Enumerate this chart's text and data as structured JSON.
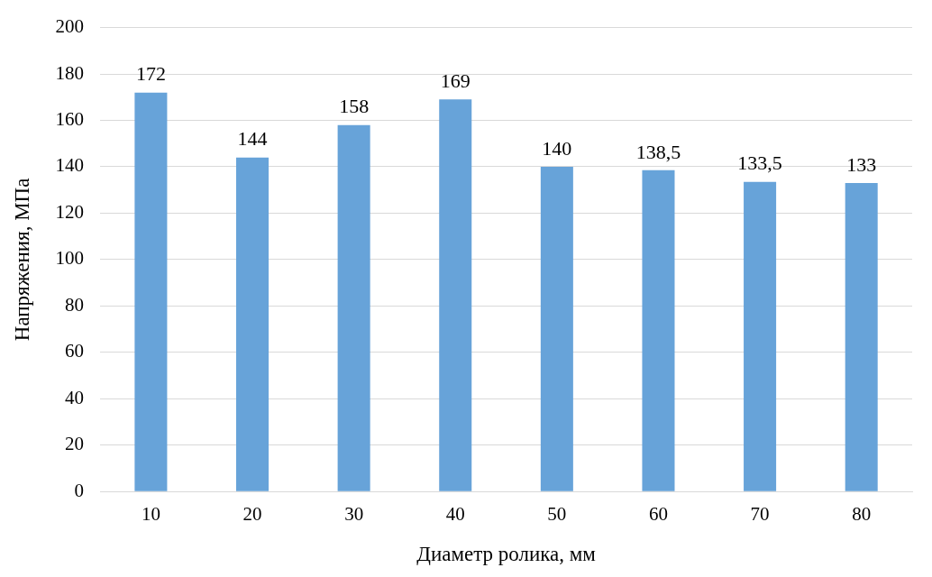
{
  "chart_data": {
    "type": "bar",
    "xlabel": "Диаметр ролика, мм",
    "ylabel": "Напряжения, МПа",
    "categories": [
      "10",
      "20",
      "30",
      "40",
      "50",
      "60",
      "70",
      "80"
    ],
    "values": [
      172,
      144,
      158,
      169,
      140,
      138.5,
      133.5,
      133
    ],
    "value_labels": [
      "172",
      "144",
      "158",
      "169",
      "140",
      "138,5",
      "133,5",
      "133"
    ],
    "color": "#67a3d9",
    "ylim": [
      0,
      200
    ],
    "yticks": [
      0,
      20,
      40,
      60,
      80,
      100,
      120,
      140,
      160,
      180,
      200
    ],
    "grid": "y"
  }
}
